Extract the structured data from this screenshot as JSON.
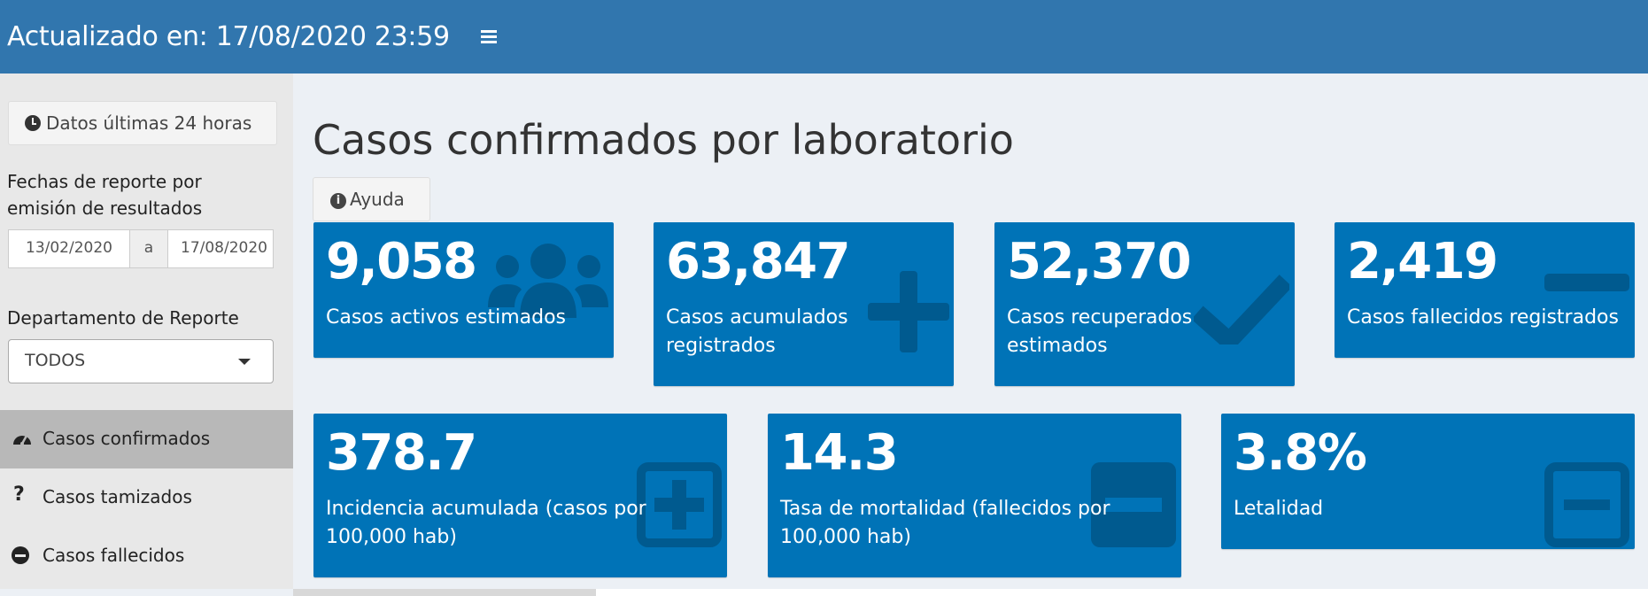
{
  "header": {
    "title": "Actualizado en: 17/08/2020 23:59",
    "menu_icon": "hamburger-menu-icon"
  },
  "sidebar": {
    "last24_button": "Datos últimas 24 horas",
    "dates_label": "Fechas de reporte por emisión de resultados",
    "date_from": "13/02/2020",
    "date_sep": "a",
    "date_to": "17/08/2020",
    "dept_label": "Departamento de Reporte",
    "dept_selected": "TODOS",
    "nav": [
      {
        "label": "Casos confirmados",
        "icon": "dashboard-gauge-icon",
        "active": true
      },
      {
        "label": "Casos tamizados",
        "icon": "question-icon",
        "active": false
      },
      {
        "label": "Casos fallecidos",
        "icon": "minus-circle-icon",
        "active": false
      }
    ]
  },
  "main": {
    "title": "Casos confirmados por laboratorio",
    "help_button": "Ayuda",
    "cards": [
      {
        "value": "9,058",
        "label": "Casos activos estimados",
        "icon": "users-icon"
      },
      {
        "value": "63,847",
        "label": "Casos acumulados registrados",
        "icon": "plus-icon"
      },
      {
        "value": "52,370",
        "label": "Casos recuperados estimados",
        "icon": "check-icon"
      },
      {
        "value": "2,419",
        "label": "Casos fallecidos registrados",
        "icon": "minus-icon"
      },
      {
        "value": "378.7",
        "label": "Incidencia acumulada (casos por 100,000 hab)",
        "icon": "plus-square-icon"
      },
      {
        "value": "14.3",
        "label": "Tasa de mortalidad (fallecidos por 100,000 hab)",
        "icon": "minus-square-icon"
      },
      {
        "value": "3.8%",
        "label": "Letalidad",
        "icon": "minus-square-outline-icon"
      }
    ]
  },
  "colors": {
    "header": "#3176ae",
    "card": "#0073b7",
    "background": "#ecf0f5",
    "sidebar": "#e8e8e8",
    "active_nav": "#b8b8b8"
  }
}
